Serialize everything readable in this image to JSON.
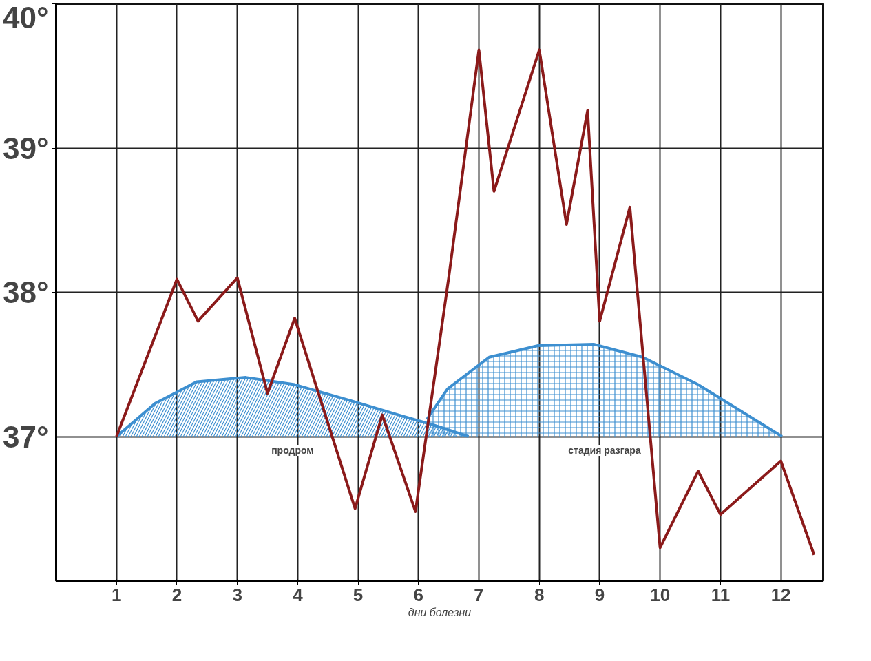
{
  "chart_data": {
    "type": "line",
    "xlabel": "дни болезни",
    "xlim": [
      0,
      12.7
    ],
    "xticks": [
      1,
      2,
      3,
      4,
      5,
      6,
      7,
      8,
      9,
      10,
      11,
      12
    ],
    "ylim": [
      36,
      40
    ],
    "yticks": [
      {
        "value": 37,
        "label": "37°"
      },
      {
        "value": 38,
        "label": "38°"
      },
      {
        "value": 39,
        "label": "39°"
      },
      {
        "value": 40,
        "label": "40°"
      }
    ],
    "grid": true,
    "marker": "none",
    "line_style": "solid",
    "series": [
      {
        "type": "area",
        "color": "#3d8fd0",
        "x": [
          1,
          1.64,
          2.33,
          3.14,
          3.95,
          4.87,
          5.67,
          6.25,
          6.83
        ],
        "values": [
          37.0,
          37.23,
          37.38,
          37.41,
          37.36,
          37.25,
          37.15,
          37.08,
          37.0
        ]
      },
      {
        "type": "area",
        "color": "#3d8fd0",
        "x": [
          6.14,
          6.48,
          7.17,
          7.98,
          8.9,
          9.71,
          10.63,
          11.44,
          12.02
        ],
        "values": [
          37.12,
          37.33,
          37.55,
          37.63,
          37.64,
          37.55,
          37.36,
          37.15,
          37.0
        ]
      },
      {
        "color": "#8b1a1a",
        "x": [
          1,
          2,
          2.35,
          3,
          3.5,
          3.95,
          4.95,
          5.4,
          5.95,
          6.5,
          7,
          7.25,
          8,
          8.45,
          8.8,
          9.0,
          9.5,
          10,
          10.63,
          11,
          12,
          12.55
        ],
        "values": [
          37.0,
          38.09,
          37.8,
          38.1,
          37.3,
          37.82,
          36.5,
          37.15,
          36.48,
          38.1,
          39.68,
          38.7,
          39.68,
          38.47,
          39.26,
          37.8,
          38.59,
          36.23,
          36.76,
          36.46,
          36.83,
          36.18
        ]
      }
    ],
    "annotations": [
      "продром",
      "стадия разгара"
    ]
  }
}
